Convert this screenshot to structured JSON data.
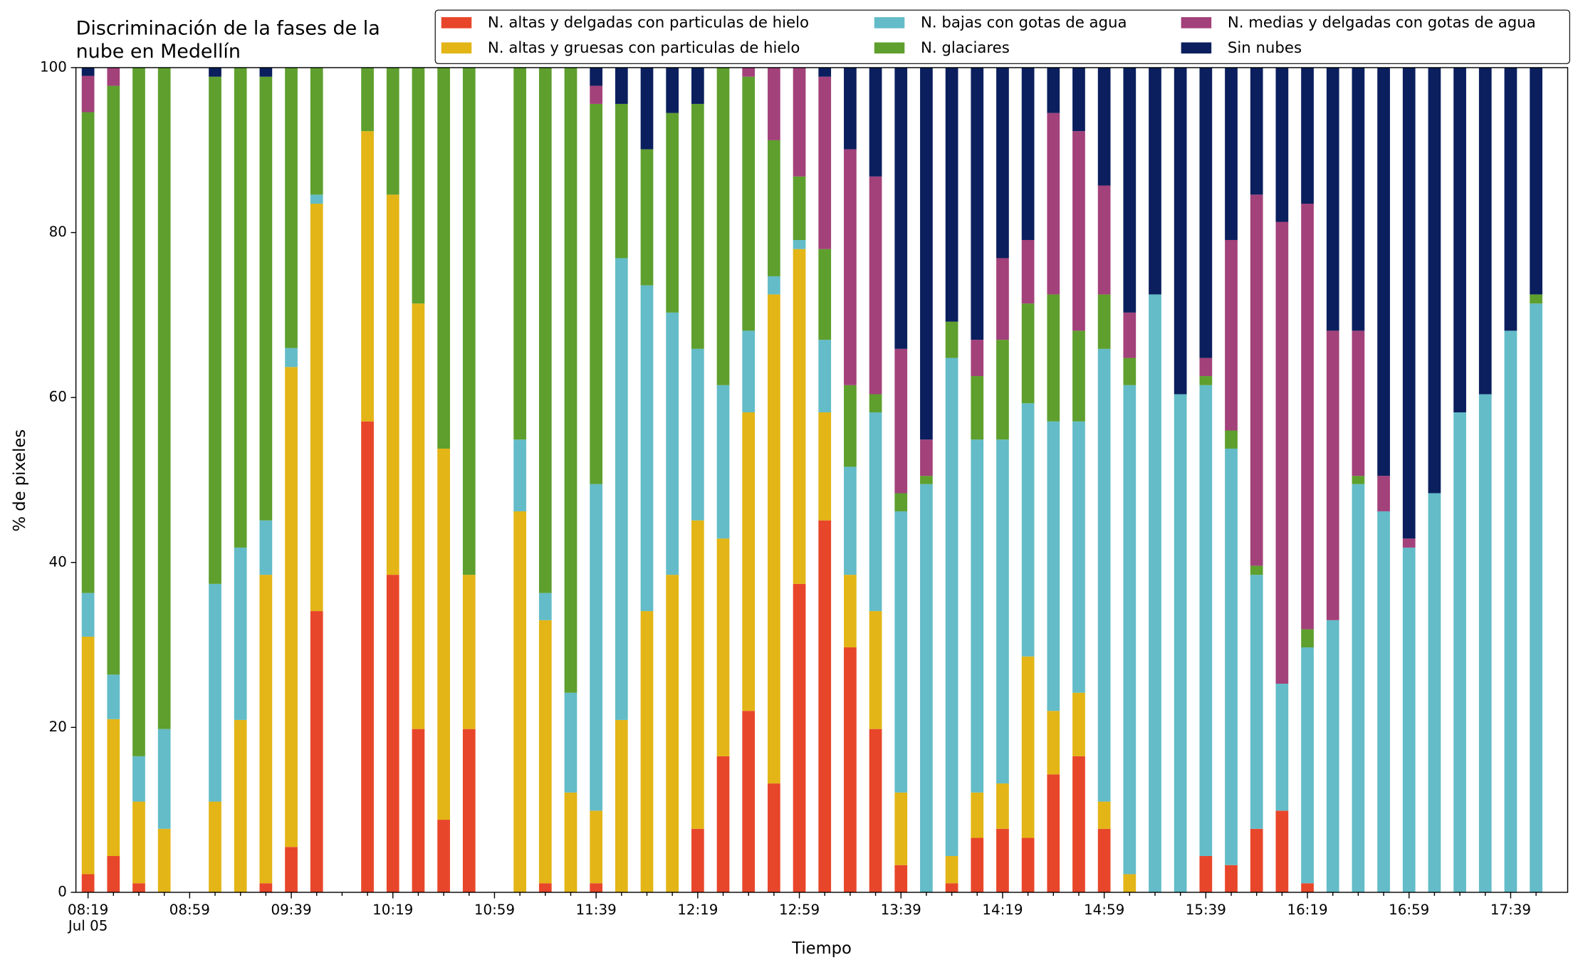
{
  "chart_data": {
    "type": "stacked_bar",
    "title": [
      "Discriminación de la fases de la",
      "nube en Medellín"
    ],
    "xlabel": "Tiempo",
    "ylabel": "% de pixeles",
    "x_date_label": "Jul 05",
    "categories": [
      "08:19",
      null,
      null,
      null,
      "08:59",
      null,
      null,
      null,
      "09:39",
      null,
      null,
      null,
      "10:19",
      null,
      null,
      null,
      "10:59",
      null,
      null,
      null,
      "11:39",
      null,
      null,
      null,
      "12:19",
      null,
      null,
      null,
      "12:59",
      null,
      null,
      null,
      "13:39",
      null,
      null,
      null,
      "14:19",
      null,
      null,
      null,
      "14:59",
      null,
      null,
      null,
      "15:39",
      null,
      null,
      null,
      "16:19",
      null,
      null,
      null,
      "16:59",
      null,
      null,
      null,
      "17:39",
      null
    ],
    "ylim": [
      0,
      100
    ],
    "yticks": [
      0,
      20,
      40,
      60,
      80,
      100
    ],
    "legend": "upper right",
    "series": [
      {
        "name": "N. altas y delgadas con particulas de hielo",
        "color": "#e8462a",
        "values": [
          2.2,
          4.4,
          1.1,
          0,
          0,
          0,
          0,
          1.1,
          5.5,
          34.1,
          0,
          57.1,
          38.5,
          19.8,
          8.8,
          19.8,
          0,
          0,
          1.1,
          0,
          1.1,
          0,
          0,
          0,
          7.7,
          16.5,
          22,
          13.2,
          37.4,
          45.1,
          29.7,
          19.8,
          3.3,
          0,
          1.1,
          6.6,
          7.7,
          6.6,
          14.3,
          16.5,
          7.7,
          0,
          0,
          0,
          4.4,
          3.3,
          7.7,
          9.9,
          1.1,
          0,
          0,
          0,
          0,
          0,
          0,
          0,
          0,
          0
        ]
      },
      {
        "name": "N. altas y gruesas con particulas de hielo",
        "color": "#e3b516",
        "values": [
          28.8,
          16.6,
          9.9,
          7.7,
          0,
          11,
          20.9,
          37.4,
          58.2,
          49.4,
          0,
          35.2,
          46.1,
          51.6,
          45,
          18.7,
          0,
          46.2,
          31.9,
          12.1,
          8.8,
          20.9,
          34.1,
          38.5,
          37.4,
          26.4,
          36.2,
          59.3,
          40.6,
          13.1,
          8.8,
          14.3,
          8.8,
          0,
          3.3,
          5.5,
          5.5,
          22,
          7.7,
          7.7,
          3.3,
          2.2,
          0,
          0,
          0,
          0,
          0,
          0,
          0,
          0,
          0,
          0,
          0,
          0,
          0,
          0,
          0,
          0
        ]
      },
      {
        "name": "N. bajas con gotas de agua",
        "color": "#63bcc8",
        "values": [
          5.3,
          5.4,
          5.5,
          12.1,
          0,
          26.4,
          20.9,
          6.6,
          2.3,
          1.1,
          0,
          0,
          0,
          0,
          0,
          0,
          0,
          8.7,
          3.3,
          12.1,
          39.6,
          56,
          39.5,
          31.8,
          20.8,
          18.6,
          9.9,
          2.2,
          1.1,
          8.8,
          13.1,
          24.1,
          34.1,
          49.5,
          60.4,
          42.8,
          41.7,
          30.7,
          35.1,
          32.9,
          54.9,
          59.3,
          72.5,
          60.4,
          57.1,
          50.5,
          30.8,
          15.4,
          28.6,
          33,
          49.5,
          46.2,
          41.8,
          48.4,
          58.2,
          60.4,
          68.1,
          71.4
        ]
      },
      {
        "name": "N. glaciares",
        "color": "#5e9f2e",
        "values": [
          58.3,
          71.4,
          83.5,
          80.2,
          0,
          61.5,
          58.2,
          53.8,
          34,
          15.4,
          0,
          7.7,
          15.4,
          28.6,
          46.2,
          61.5,
          0,
          45.1,
          63.7,
          75.8,
          46.1,
          18.7,
          16.5,
          24.2,
          29.7,
          38.5,
          30.8,
          16.5,
          7.7,
          11,
          9.9,
          2.2,
          2.2,
          1,
          4.4,
          7.7,
          12.1,
          12.1,
          15.4,
          11,
          6.6,
          3.3,
          0,
          0,
          1.1,
          2.2,
          1.1,
          0,
          2.2,
          0,
          1,
          0,
          0,
          0,
          0,
          0,
          0,
          1.1
        ]
      },
      {
        "name": "N. medias y delgadas con gotas de agua",
        "color": "#a3417a",
        "values": [
          4.4,
          2.2,
          0,
          0,
          0,
          0,
          0,
          0,
          0,
          0,
          0,
          0,
          0,
          0,
          0,
          0,
          0,
          0,
          0,
          0,
          2.2,
          0,
          0,
          0,
          0,
          0,
          1.1,
          8.8,
          13.2,
          20.9,
          28.6,
          26.4,
          17.5,
          4.4,
          0,
          4.4,
          9.9,
          7.7,
          22,
          24.2,
          13.2,
          5.5,
          0,
          0,
          2.2,
          23.1,
          45,
          56,
          51.6,
          35.1,
          17.6,
          4.3,
          1.1,
          0,
          0,
          0,
          0,
          0
        ]
      },
      {
        "name": "Sin nubes",
        "color": "#0b1f5e",
        "values": [
          1,
          0,
          0,
          0,
          0,
          1.1,
          0,
          1.1,
          0,
          0,
          0,
          0,
          0,
          0,
          0,
          0,
          0,
          0,
          0,
          0,
          2.2,
          4.4,
          9.9,
          5.5,
          4.4,
          0,
          0,
          0,
          0,
          1.1,
          9.9,
          13.2,
          34.1,
          45.1,
          30.8,
          33,
          23.1,
          20.9,
          5.5,
          7.7,
          14.3,
          29.7,
          27.5,
          39.6,
          35.2,
          20.9,
          15.4,
          18.7,
          16.5,
          31.9,
          31.9,
          49.5,
          57.1,
          51.6,
          41.8,
          39.6,
          31.9,
          27.5
        ]
      }
    ]
  }
}
